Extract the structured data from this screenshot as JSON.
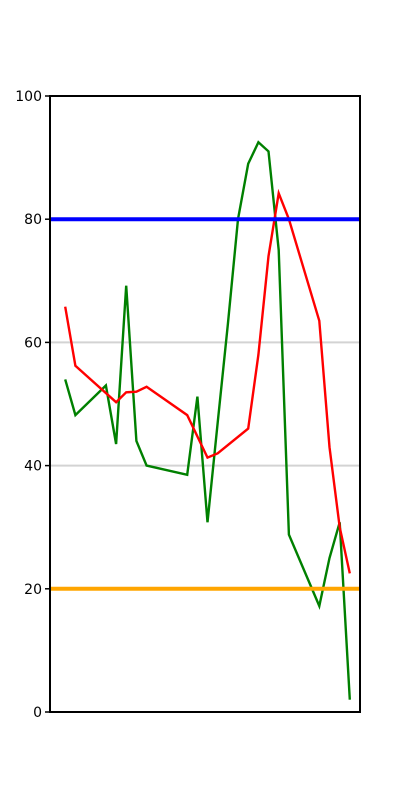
{
  "chart_data": {
    "type": "line",
    "ylim": [
      0,
      100
    ],
    "xlim": [
      -1.5,
      29
    ],
    "yticks": [
      0,
      20,
      40,
      60,
      80,
      100
    ],
    "grid": "horizontal",
    "gridlines": [
      40,
      60
    ],
    "legend": "none",
    "reference_lines": [
      {
        "value": 80,
        "color": "#0000ff"
      },
      {
        "value": 20,
        "color": "#ffa500"
      }
    ],
    "series": [
      {
        "color": "#008000",
        "x": [
          0,
          1,
          4,
          5,
          6,
          7,
          8,
          12,
          13,
          14,
          15,
          16,
          17,
          18,
          19,
          20,
          21,
          22,
          25,
          26,
          27,
          28
        ],
        "y": [
          54,
          48.2,
          53,
          43.5,
          69.2,
          44,
          40,
          38.5,
          51.2,
          30.8,
          47,
          63,
          80,
          89,
          92.5,
          91,
          75,
          28.8,
          17.2,
          25,
          30.8,
          2
        ]
      },
      {
        "color": "#ff0000",
        "x": [
          0,
          1,
          5,
          6,
          7,
          8,
          12,
          14,
          15,
          18,
          19,
          20,
          21,
          22,
          25,
          26,
          27,
          28
        ],
        "y": [
          65.8,
          56.2,
          50.3,
          51.9,
          52,
          52.8,
          48.2,
          41.3,
          42,
          46,
          58,
          74,
          84.2,
          80,
          63.5,
          43,
          30,
          22.5
        ]
      }
    ]
  }
}
